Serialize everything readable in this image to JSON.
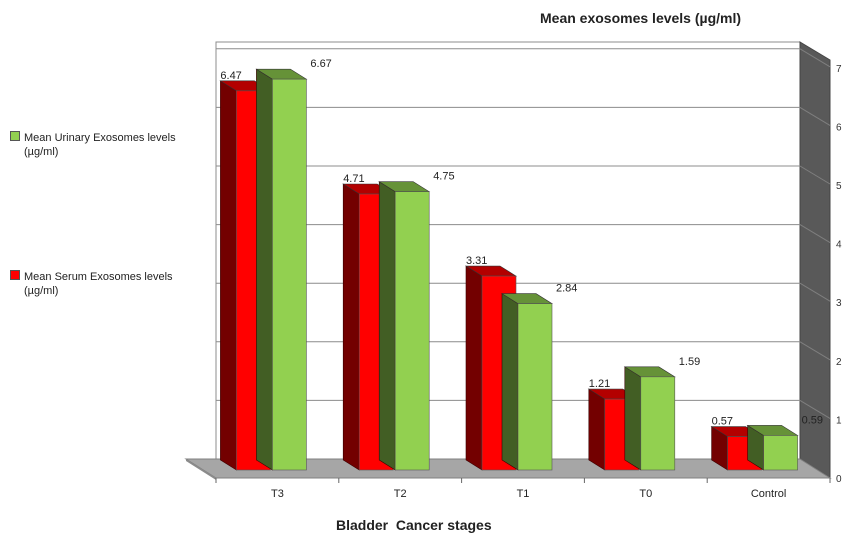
{
  "chart_data": {
    "type": "bar",
    "title": "Mean exosomes levels (µg/ml)",
    "xlabel": "Bladder  Cancer stages",
    "categories": [
      "T3",
      "T2",
      "T1",
      "T0",
      "Control"
    ],
    "series": [
      {
        "name": "Mean Serum Exosomes levels (µg/ml)",
        "values": [
          6.47,
          4.71,
          3.31,
          1.21,
          0.57
        ],
        "color": "#ff0000"
      },
      {
        "name": "Mean Urinary Exosomes levels (µg/ml)",
        "values": [
          6.67,
          4.75,
          2.84,
          1.59,
          0.59
        ],
        "color": "#92d050"
      }
    ],
    "data_labels": {
      "serum": [
        "6.47",
        "4.71",
        "3.31",
        "1.21",
        "0.57"
      ],
      "urinary": [
        "6.67",
        "4.75",
        "2.84",
        "1.59",
        "0.59"
      ]
    },
    "yticks": [
      "0",
      "1",
      "2",
      "3",
      "4",
      "5",
      "6",
      "7"
    ],
    "ylim": [
      0,
      7
    ],
    "grid": true,
    "legend_position": "left",
    "style": "3d-clustered-column"
  },
  "legend": {
    "urinary": {
      "label": "Mean Urinary Exosomes levels (µg/ml)",
      "color": "#92d050"
    },
    "serum": {
      "label": "Mean Serum Exosomes levels (µg/ml)",
      "color": "#ff0000"
    }
  }
}
